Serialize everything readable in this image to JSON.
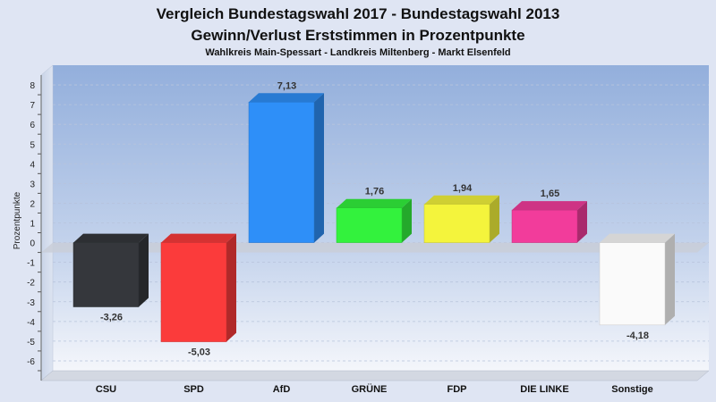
{
  "chart_data": {
    "type": "bar",
    "title": "Vergleich Bundestagswahl 2017 - Bundestagswahl 2013",
    "subtitle": "Gewinn/Verlust Erststimmen in Prozentpunkte",
    "subsubtitle": "Wahlkreis Main-Spessart - Landkreis Miltenberg - Markt Elsenfeld",
    "ylabel": "Prozentpunkte",
    "xlabel": "",
    "ylim": [
      -6.5,
      9
    ],
    "yticks": [
      8,
      7,
      6,
      5,
      4,
      3,
      2,
      1,
      0,
      -1,
      -2,
      -3,
      -4,
      -5,
      -6
    ],
    "grid": true,
    "categories": [
      "CSU",
      "SPD",
      "AfD",
      "GRÜNE",
      "FDP",
      "DIE LINKE",
      "Sonstige"
    ],
    "values": [
      -3.26,
      -5.03,
      7.13,
      1.76,
      1.94,
      1.65,
      -4.18
    ],
    "value_labels": [
      "-3,26",
      "-5,03",
      "7,13",
      "1,76",
      "1,94",
      "1,65",
      "-4,18"
    ],
    "colors": [
      "#35373c",
      "#fb3b3b",
      "#2e8ff8",
      "#33f23d",
      "#f4f43c",
      "#f23c9b",
      "#fafafa"
    ]
  }
}
